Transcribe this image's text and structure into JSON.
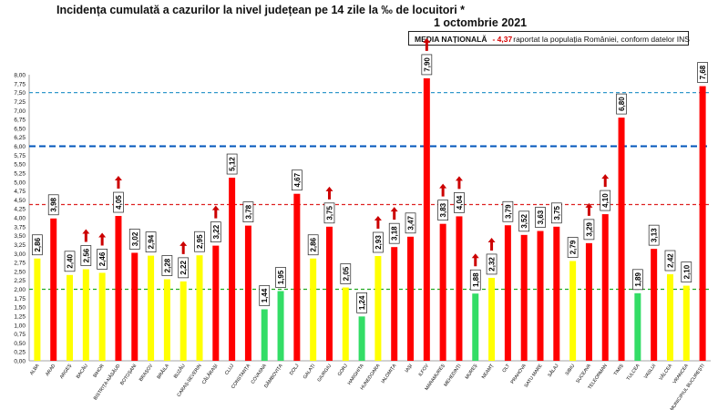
{
  "header": {
    "title": "Incidența cumulată a cazurilor la nivel județean pe 14 zile la ‰ de locuitori *",
    "date": "1 octombrie 2021",
    "national_label": "MEDIA NAȚIONALĂ",
    "national_value": "- 4,37",
    "national_note": "raportat la populația României, conform datelor INS"
  },
  "colors": {
    "red": "#ff0000",
    "yellow": "#ffff00",
    "green": "#33dd66",
    "arrow": "#cc0000"
  },
  "chart_data": {
    "type": "bar",
    "ylim": [
      0,
      8
    ],
    "yticks": [
      "0,00",
      "0,25",
      "0,50",
      "0,75",
      "1,00",
      "1,25",
      "1,50",
      "1,75",
      "2,00",
      "2,25",
      "2,50",
      "2,75",
      "3,00",
      "3,25",
      "3,50",
      "3,75",
      "4,00",
      "4,25",
      "4,50",
      "4,75",
      "5,00",
      "5,25",
      "5,50",
      "5,75",
      "6,00",
      "6,25",
      "6,50",
      "6,75",
      "7,00",
      "7,25",
      "7,50",
      "7,75",
      "8,00"
    ],
    "categories": [
      "ALBA",
      "ARAD",
      "ARGEȘ",
      "BACĂU",
      "BIHOR",
      "BISTRIȚA-NĂSĂUD",
      "BOTOȘANI",
      "BRAȘOV",
      "BRĂILA",
      "BUZĂU",
      "CARAȘ-SEVERIN",
      "CĂLĂRAȘI",
      "CLUJ",
      "CONSTANȚA",
      "COVASNA",
      "DÂMBOVIȚA",
      "DOLJ",
      "GALAȚI",
      "GIURGIU",
      "GORJ",
      "HARGHITA",
      "HUNEDOARA",
      "IALOMIȚA",
      "IAȘI",
      "ILFOV",
      "MARAMUREȘ",
      "MEHEDINȚI",
      "MUREȘ",
      "NEAMȚ",
      "OLT",
      "PRAHOVA",
      "SATU MARE",
      "SĂLAJ",
      "SIBIU",
      "SUCEAVA",
      "TELEORMAN",
      "TIMIȘ",
      "TULCEA",
      "VASLUI",
      "VÂLCEA",
      "VRANCEA",
      "MUNICIPIUL BUCUREȘTI"
    ],
    "values": [
      2.86,
      3.98,
      2.4,
      2.56,
      2.46,
      4.05,
      3.02,
      2.94,
      2.28,
      2.22,
      2.95,
      3.22,
      5.12,
      3.78,
      1.44,
      1.95,
      4.67,
      2.86,
      3.75,
      2.05,
      1.24,
      2.93,
      3.18,
      3.47,
      7.9,
      3.83,
      4.04,
      1.88,
      2.32,
      3.79,
      3.52,
      3.63,
      3.75,
      2.79,
      3.29,
      4.1,
      6.8,
      1.89,
      3.13,
      2.42,
      2.1,
      7.68
    ],
    "labels": [
      "2,86",
      "3,98",
      "2,40",
      "2,56",
      "2,46",
      "4,05",
      "3,02",
      "2,94",
      "2,28",
      "2,22",
      "2,95",
      "3,22",
      "5,12",
      "3,78",
      "1,44",
      "1,95",
      "4,67",
      "2,86",
      "3,75",
      "2,05",
      "1,24",
      "2,93",
      "3,18",
      "3,47",
      "7,90",
      "3,83",
      "4,04",
      "1,88",
      "2,32",
      "3,79",
      "3,52",
      "3,63",
      "3,75",
      "2,79",
      "3,29",
      "4,10",
      "6,80",
      "1,89",
      "3,13",
      "2,42",
      "2,10",
      "7,68"
    ],
    "colors": [
      "yellow",
      "red",
      "yellow",
      "yellow",
      "yellow",
      "red",
      "red",
      "yellow",
      "yellow",
      "yellow",
      "yellow",
      "red",
      "red",
      "red",
      "green",
      "green",
      "red",
      "yellow",
      "red",
      "yellow",
      "green",
      "yellow",
      "red",
      "red",
      "red",
      "red",
      "red",
      "green",
      "yellow",
      "red",
      "red",
      "red",
      "red",
      "yellow",
      "red",
      "red",
      "red",
      "green",
      "red",
      "yellow",
      "yellow",
      "red"
    ],
    "up_arrows": [
      false,
      false,
      false,
      true,
      true,
      true,
      false,
      false,
      false,
      true,
      false,
      true,
      false,
      false,
      false,
      false,
      false,
      false,
      true,
      false,
      false,
      true,
      true,
      false,
      true,
      true,
      true,
      true,
      true,
      false,
      false,
      false,
      false,
      false,
      true,
      true,
      false,
      false,
      false,
      false,
      false,
      false
    ],
    "reference_lines": [
      {
        "value": 7.5,
        "style": "dashed",
        "color": "#3399cc"
      },
      {
        "value": 6.0,
        "style": "dashed",
        "color": "#0055bb"
      },
      {
        "value": 4.37,
        "style": "dashed",
        "color": "#dd2222"
      },
      {
        "value": 2.0,
        "style": "dashed",
        "color": "#22aa22"
      }
    ],
    "grid": false,
    "legend": "top-right"
  }
}
